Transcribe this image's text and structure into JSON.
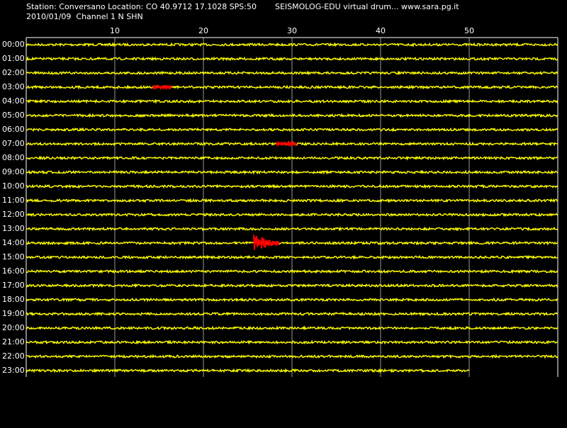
{
  "header": {
    "station": "Station: Conversano Location: CO 40.9712 17.1028 SPS:50",
    "source": "SEISMOLOG-EDU virtual drum... www.sara.pg.it",
    "date_channel": "2010/01/09  Channel 1 N SHN"
  },
  "minute_labels": [
    "10",
    "20",
    "30",
    "40",
    "50"
  ],
  "hour_labels": [
    "00:00",
    "01:00",
    "02:00",
    "03:00",
    "04:00",
    "05:00",
    "06:00",
    "07:00",
    "08:00",
    "09:00",
    "10:00",
    "11:00",
    "12:00",
    "13:00",
    "14:00",
    "15:00",
    "16:00",
    "17:00",
    "18:00",
    "19:00",
    "20:00",
    "21:00",
    "22:00",
    "23:00"
  ]
}
